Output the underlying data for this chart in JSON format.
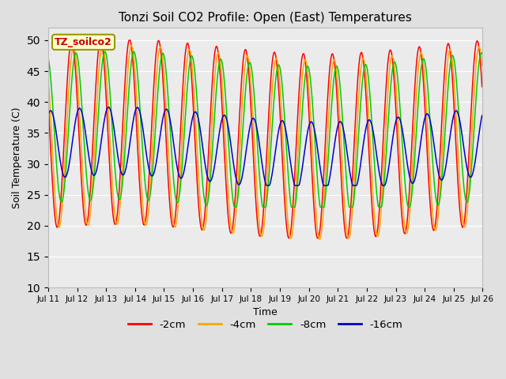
{
  "title": "Tonzi Soil CO2 Profile: Open (East) Temperatures",
  "xlabel": "Time",
  "ylabel": "Soil Temperature (C)",
  "ylim": [
    10,
    52
  ],
  "yticks": [
    10,
    15,
    20,
    25,
    30,
    35,
    40,
    45,
    50
  ],
  "legend_label": "TZ_soilco2",
  "series_labels": [
    "-2cm",
    "-4cm",
    "-8cm",
    "-16cm"
  ],
  "series_colors": [
    "#ff0000",
    "#ffa500",
    "#00cc00",
    "#0000cc"
  ],
  "background_color": "#e0e0e0",
  "plot_bg_color": "#ebebeb",
  "n_days": 15,
  "start_day": 11,
  "samples_per_day": 48
}
